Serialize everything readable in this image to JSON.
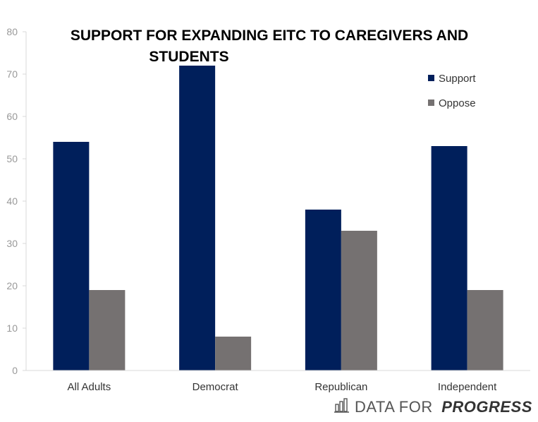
{
  "chart_data": {
    "type": "bar",
    "title_lines": [
      "SUPPORT FOR EXPANDING EITC TO CAREGIVERS AND",
      "STUDENTS"
    ],
    "categories": [
      "All Adults",
      "Democrat",
      "Republican",
      "Independent"
    ],
    "series": [
      {
        "name": "Support",
        "values": [
          54,
          72,
          38,
          53
        ],
        "color": "#001f5b"
      },
      {
        "name": "Oppose",
        "values": [
          19,
          8,
          33,
          19
        ],
        "color": "#757171"
      }
    ],
    "ylim": [
      0,
      80
    ],
    "yticks": [
      0,
      10,
      20,
      30,
      40,
      50,
      60,
      70,
      80
    ],
    "grid": false,
    "legend_position": "top-right",
    "xlabel": "",
    "ylabel": ""
  },
  "branding": {
    "icon": "bar-chart-icon",
    "text_regular": "DATA FOR",
    "text_strong": "PROGRESS"
  }
}
